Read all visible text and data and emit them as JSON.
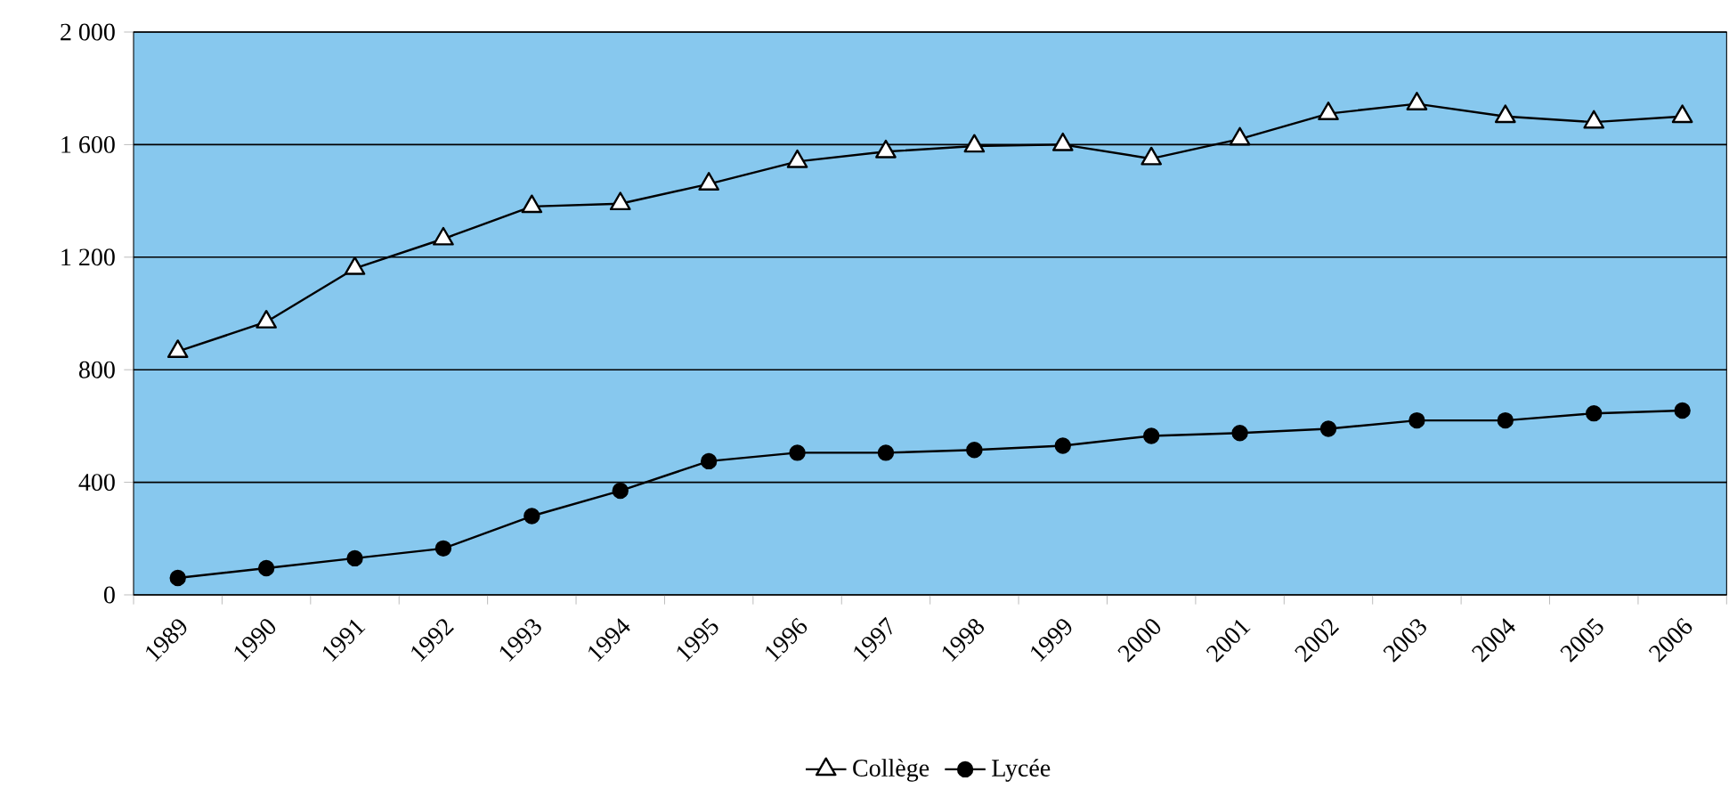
{
  "chart_data": {
    "type": "line",
    "categories": [
      "1989",
      "1990",
      "1991",
      "1992",
      "1993",
      "1994",
      "1995",
      "1996",
      "1997",
      "1998",
      "1999",
      "2000",
      "2001",
      "2002",
      "2003",
      "2004",
      "2005",
      "2006"
    ],
    "series": [
      {
        "name": "Collège",
        "color": "#000000",
        "marker": "triangle",
        "values": [
          865,
          970,
          1160,
          1265,
          1380,
          1390,
          1460,
          1540,
          1575,
          1595,
          1600,
          1550,
          1620,
          1710,
          1745,
          1700,
          1680,
          1700
        ]
      },
      {
        "name": "Lycée",
        "color": "#000000",
        "marker": "circle",
        "values": [
          60,
          95,
          130,
          165,
          280,
          370,
          475,
          505,
          505,
          515,
          530,
          565,
          575,
          590,
          620,
          620,
          645,
          655
        ]
      }
    ],
    "ylim": [
      0,
      2000
    ],
    "yticks": [
      0,
      400,
      800,
      {
        "value": 1200,
        "label": "1 200"
      },
      {
        "value": 1600,
        "label": "1 600"
      },
      {
        "value": 2000,
        "label": "2 000"
      }
    ],
    "grid": "y",
    "legend": "bottom",
    "line_style": "solid"
  }
}
